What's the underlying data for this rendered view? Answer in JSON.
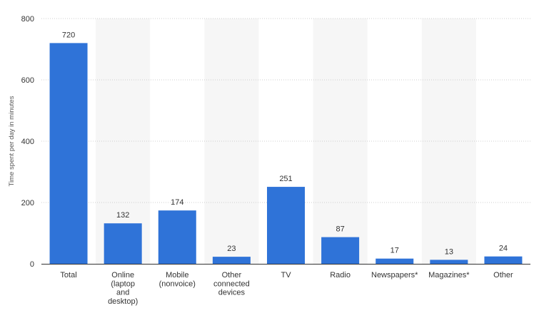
{
  "chart_data": {
    "type": "bar",
    "title": "",
    "xlabel": "",
    "ylabel": "Time spent per day in minutes",
    "ylim": [
      0,
      800
    ],
    "yticks": [
      0,
      200,
      400,
      600,
      800
    ],
    "grid": "horizontal dotted",
    "bar_color": "#2f73d8",
    "categories": [
      [
        "Total"
      ],
      [
        "Online",
        "(laptop",
        "and",
        "desktop)"
      ],
      [
        "Mobile",
        "(nonvoice)"
      ],
      [
        "Other",
        "connected",
        "devices"
      ],
      [
        "TV"
      ],
      [
        "Radio"
      ],
      [
        "Newspapers*"
      ],
      [
        "Magazines*"
      ],
      [
        "Other"
      ]
    ],
    "values": [
      720,
      132,
      174,
      23,
      251,
      87,
      17,
      13,
      24
    ]
  }
}
